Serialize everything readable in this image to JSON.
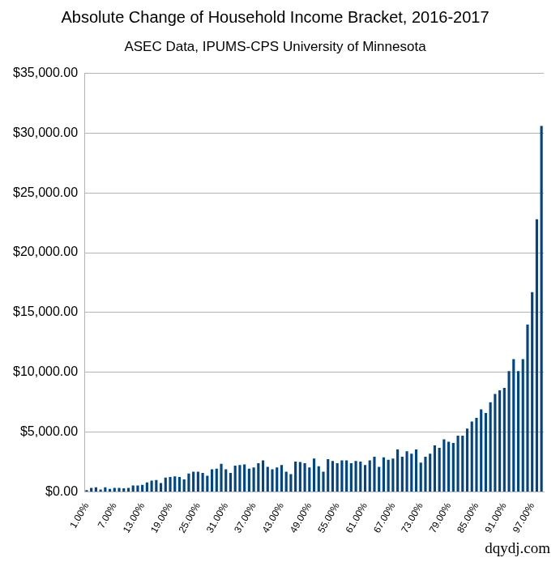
{
  "chart_data": {
    "type": "bar",
    "title": "Absolute Change of Household Income Bracket, 2016-2017",
    "subtitle": "ASEC Data, IPUMS-CPS University of Minnesota",
    "annotation": "dqydj.com",
    "categories": [
      "1.00%",
      null,
      null,
      null,
      null,
      null,
      "7.00%",
      null,
      null,
      null,
      null,
      null,
      "13.00%",
      null,
      null,
      null,
      null,
      null,
      "19.00%",
      null,
      null,
      null,
      null,
      null,
      "25.00%",
      null,
      null,
      null,
      null,
      null,
      "31.00%",
      null,
      null,
      null,
      null,
      null,
      "37.00%",
      null,
      null,
      null,
      null,
      null,
      "43.00%",
      null,
      null,
      null,
      null,
      null,
      "49.00%",
      null,
      null,
      null,
      null,
      null,
      "55.00%",
      null,
      null,
      null,
      null,
      null,
      "61.00%",
      null,
      null,
      null,
      null,
      null,
      "67.00%",
      null,
      null,
      null,
      null,
      null,
      "73.00%",
      null,
      null,
      null,
      null,
      null,
      "79.00%",
      null,
      null,
      null,
      null,
      null,
      "85.00%",
      null,
      null,
      null,
      null,
      null,
      "91.00%",
      null,
      null,
      null,
      null,
      null,
      "97.00%",
      null,
      null
    ],
    "values": [
      150,
      350,
      400,
      200,
      400,
      250,
      350,
      350,
      300,
      350,
      550,
      550,
      600,
      800,
      950,
      1000,
      750,
      1200,
      1250,
      1300,
      1250,
      1050,
      1550,
      1700,
      1700,
      1600,
      1350,
      1900,
      1950,
      2350,
      1900,
      1600,
      2200,
      2250,
      2300,
      1950,
      2050,
      2400,
      2650,
      2100,
      1900,
      2050,
      2250,
      1700,
      1500,
      2550,
      2500,
      2400,
      2050,
      2800,
      2150,
      1700,
      2750,
      2600,
      2400,
      2650,
      2650,
      2400,
      2600,
      2550,
      2250,
      2650,
      2950,
      2100,
      2900,
      2700,
      2800,
      3550,
      2950,
      3400,
      3200,
      3550,
      2450,
      2950,
      3200,
      3900,
      3700,
      4400,
      4200,
      4100,
      4700,
      4700,
      5300,
      5900,
      6200,
      6900,
      6600,
      7500,
      8200,
      8500,
      8700,
      10100,
      11100,
      10100,
      11100,
      14000,
      16700,
      22800,
      30600
    ],
    "color": "#004586",
    "ylim": [
      0,
      35000
    ],
    "yticks": [
      {
        "value": 0,
        "label": "$0.00"
      },
      {
        "value": 5000,
        "label": "$5,000.00"
      },
      {
        "value": 10000,
        "label": "$10,000.00"
      },
      {
        "value": 15000,
        "label": "$15,000.00"
      },
      {
        "value": 20000,
        "label": "$20,000.00"
      },
      {
        "value": 25000,
        "label": "$25,000.00"
      },
      {
        "value": 30000,
        "label": "$30,000.00"
      },
      {
        "value": 35000,
        "label": "$35,000.00"
      }
    ],
    "grid": true
  }
}
